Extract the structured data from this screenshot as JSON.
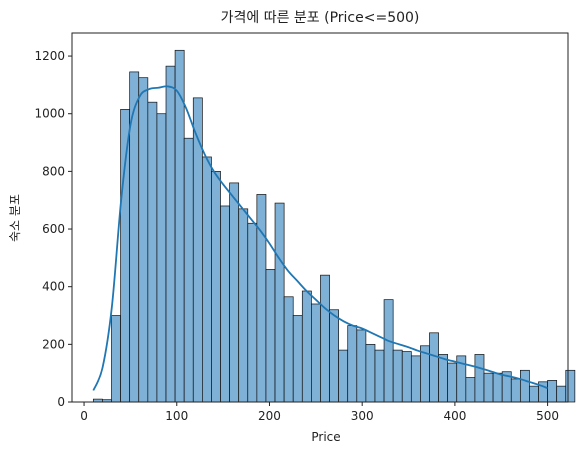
{
  "chart_data": {
    "type": "bar",
    "subtype": "histogram-with-kde",
    "title": "가격에 따른 분포 (Price<=500)",
    "xlabel": "Price",
    "ylabel": "숙소 분포",
    "xlim": [
      -13,
      522
    ],
    "ylim": [
      0,
      1280
    ],
    "xticks": [
      0,
      100,
      200,
      300,
      400,
      500
    ],
    "yticks": [
      0,
      200,
      400,
      600,
      800,
      1000,
      1200
    ],
    "grid": false,
    "bins": {
      "start": 10,
      "width": 9.8,
      "values": [
        10,
        8,
        300,
        1015,
        1145,
        1125,
        1040,
        1000,
        1165,
        1220,
        915,
        1055,
        850,
        800,
        680,
        760,
        670,
        620,
        720,
        460,
        690,
        365,
        300,
        385,
        340,
        440,
        320,
        180,
        265,
        250,
        200,
        180,
        355,
        180,
        175,
        160,
        195,
        240,
        165,
        135,
        160,
        85,
        165,
        100,
        100,
        105,
        80,
        110,
        55,
        70,
        75,
        55,
        110
      ]
    },
    "kde": {
      "x": [
        10,
        20,
        30,
        40,
        50,
        60,
        70,
        80,
        90,
        100,
        110,
        120,
        130,
        140,
        150,
        160,
        170,
        180,
        190,
        200,
        210,
        220,
        230,
        240,
        250,
        260,
        270,
        280,
        290,
        300,
        310,
        320,
        330,
        340,
        350,
        360,
        370,
        380,
        390,
        400,
        410,
        420,
        430,
        440,
        450,
        460,
        470,
        480,
        490,
        500
      ],
      "y": [
        40,
        120,
        330,
        700,
        960,
        1060,
        1085,
        1090,
        1095,
        1080,
        1020,
        935,
        860,
        800,
        755,
        715,
        675,
        635,
        595,
        550,
        500,
        455,
        420,
        385,
        355,
        325,
        300,
        280,
        265,
        255,
        240,
        225,
        210,
        200,
        190,
        178,
        168,
        158,
        148,
        140,
        132,
        124,
        115,
        105,
        95,
        88,
        80,
        70,
        60,
        48
      ]
    },
    "colors": {
      "bar_fill": "#7fb0d6",
      "bar_edge": "#111111",
      "kde_line": "#1f77b4"
    }
  }
}
